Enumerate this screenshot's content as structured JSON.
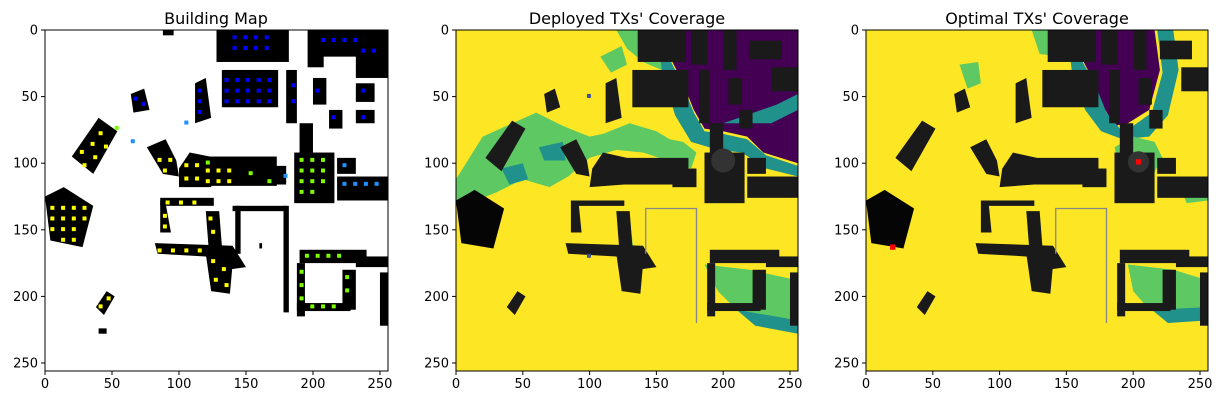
{
  "panels": [
    {
      "id": "building-map",
      "title": "Building Map",
      "background": "#ffffff",
      "building_color": "#0a0a0a",
      "markers": [
        {
          "color": "#0000ff",
          "region": "top-right"
        },
        {
          "color": "#1e90ff",
          "region": "right-middle"
        },
        {
          "color": "#7cfc00",
          "region": "right-lower"
        },
        {
          "color": "#ffff00",
          "region": "left"
        }
      ]
    },
    {
      "id": "deployed-coverage",
      "title": "Deployed TXs' Coverage",
      "background": "#fde725",
      "tx_color": "#3b528b"
    },
    {
      "id": "optimal-coverage",
      "title": "Optimal TXs' Coverage",
      "background": "#fde725",
      "tx_color": "#ff0000"
    }
  ],
  "chart_data": [
    {
      "type": "heatmap",
      "title": "Building Map",
      "xlim": [
        0,
        256
      ],
      "ylim": [
        256,
        0
      ],
      "xticks": [
        0,
        50,
        100,
        150,
        200,
        250
      ],
      "yticks": [
        0,
        50,
        100,
        150,
        200,
        250
      ]
    },
    {
      "type": "heatmap",
      "title": "Deployed TXs' Coverage",
      "xlim": [
        0,
        256
      ],
      "ylim": [
        256,
        0
      ],
      "xticks": [
        0,
        50,
        100,
        150,
        200,
        250
      ],
      "yticks": [
        0,
        50,
        100,
        150,
        200,
        250
      ],
      "colormap": [
        "#440154",
        "#21918c",
        "#5ec962",
        "#fde725"
      ]
    },
    {
      "type": "heatmap",
      "title": "Optimal TXs' Coverage",
      "xlim": [
        0,
        256
      ],
      "ylim": [
        256,
        0
      ],
      "xticks": [
        0,
        50,
        100,
        150,
        200,
        250
      ],
      "yticks": [
        0,
        50,
        100,
        150,
        200,
        250
      ],
      "colormap": [
        "#440154",
        "#21918c",
        "#5ec962",
        "#fde725"
      ],
      "tx_positions": [
        {
          "x": 204,
          "y": 99
        },
        {
          "x": 20,
          "y": 163
        }
      ]
    }
  ]
}
